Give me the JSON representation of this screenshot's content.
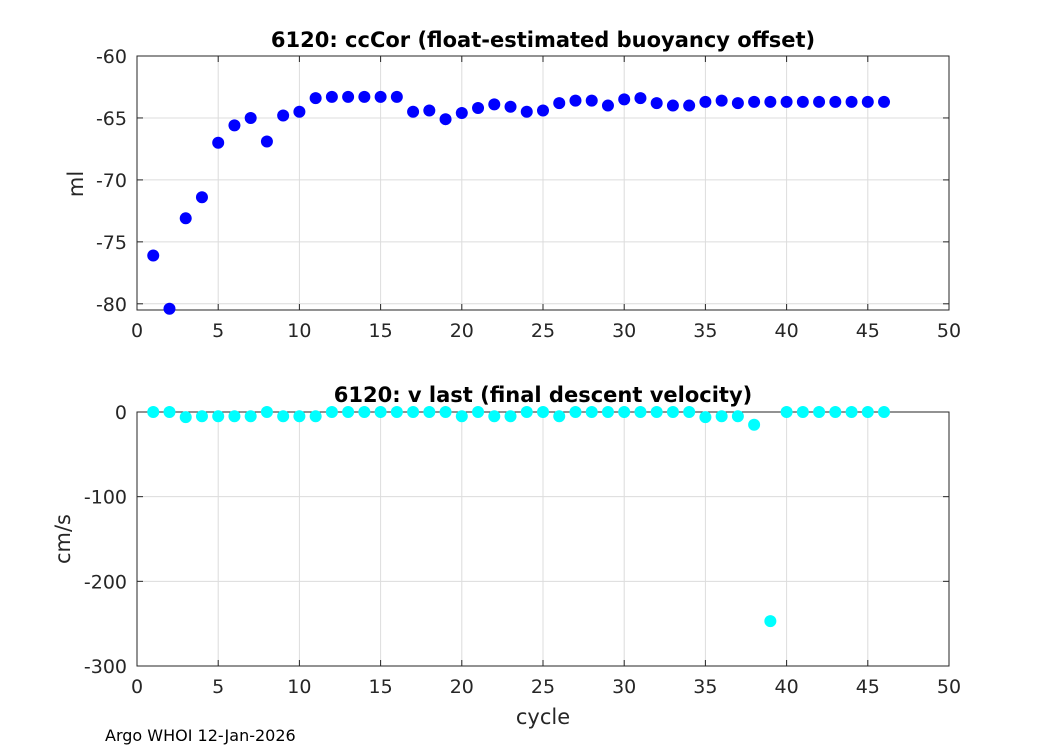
{
  "footer": "Argo WHOI 12-Jan-2026",
  "chart_data": [
    {
      "type": "scatter",
      "title": "6120: ccCor (float-estimated buoyancy offset)",
      "xlabel": "",
      "ylabel": "ml",
      "xlim": [
        0,
        50
      ],
      "ylim": [
        -80.5,
        -60
      ],
      "xticks": [
        "0",
        "5",
        "10",
        "15",
        "20",
        "25",
        "30",
        "35",
        "40",
        "45",
        "50"
      ],
      "xtick_values": [
        0,
        5,
        10,
        15,
        20,
        25,
        30,
        35,
        40,
        45,
        50
      ],
      "yticks": [
        "-80",
        "-75",
        "-70",
        "-65",
        "-60"
      ],
      "ytick_values": [
        -80,
        -75,
        -70,
        -65,
        -60
      ],
      "grid": true,
      "color": "#0000ff",
      "x": [
        1,
        2,
        3,
        4,
        5,
        6,
        7,
        8,
        9,
        10,
        11,
        12,
        13,
        14,
        15,
        16,
        17,
        18,
        19,
        20,
        21,
        22,
        23,
        24,
        25,
        26,
        27,
        28,
        29,
        30,
        31,
        32,
        33,
        34,
        35,
        36,
        37,
        38,
        39,
        40,
        41,
        42,
        43,
        44,
        45,
        46
      ],
      "y": [
        -76.1,
        -80.4,
        -73.1,
        -71.4,
        -67.0,
        -65.6,
        -65.0,
        -66.9,
        -64.8,
        -64.5,
        -63.4,
        -63.3,
        -63.3,
        -63.3,
        -63.3,
        -63.3,
        -64.5,
        -64.4,
        -65.1,
        -64.6,
        -64.2,
        -63.9,
        -64.1,
        -64.5,
        -64.4,
        -63.8,
        -63.6,
        -63.6,
        -64.0,
        -63.5,
        -63.4,
        -63.8,
        -64.0,
        -64.0,
        -63.7,
        -63.6,
        -63.8,
        -63.7,
        -63.7,
        -63.7,
        -63.7,
        -63.7,
        -63.7,
        -63.7,
        -63.7,
        -63.7
      ]
    },
    {
      "type": "scatter",
      "title": "6120: v last (final descent velocity)",
      "xlabel": "cycle",
      "ylabel": "cm/s",
      "xlim": [
        0,
        50
      ],
      "ylim": [
        -300,
        0
      ],
      "xticks": [
        "0",
        "5",
        "10",
        "15",
        "20",
        "25",
        "30",
        "35",
        "40",
        "45",
        "50"
      ],
      "xtick_values": [
        0,
        5,
        10,
        15,
        20,
        25,
        30,
        35,
        40,
        45,
        50
      ],
      "yticks": [
        "-300",
        "-200",
        "-100",
        "0"
      ],
      "ytick_values": [
        -300,
        -200,
        -100,
        0
      ],
      "grid": true,
      "color": "#00ffff",
      "x": [
        1,
        2,
        3,
        4,
        5,
        6,
        7,
        8,
        9,
        10,
        11,
        12,
        13,
        14,
        15,
        16,
        17,
        18,
        19,
        20,
        21,
        22,
        23,
        24,
        25,
        26,
        27,
        28,
        29,
        30,
        31,
        32,
        33,
        34,
        35,
        36,
        37,
        38,
        39,
        40,
        41,
        42,
        43,
        44,
        45,
        46
      ],
      "y": [
        0,
        0,
        -6,
        -5,
        -5,
        -5,
        -5,
        0,
        -5,
        -5,
        -5,
        0,
        0,
        0,
        0,
        0,
        0,
        0,
        0,
        -5,
        0,
        -5,
        -5,
        0,
        0,
        -5,
        0,
        0,
        0,
        0,
        0,
        0,
        0,
        0,
        -6,
        -5,
        -5,
        -15,
        -247,
        0,
        0,
        0,
        0,
        0,
        0,
        0
      ]
    }
  ]
}
